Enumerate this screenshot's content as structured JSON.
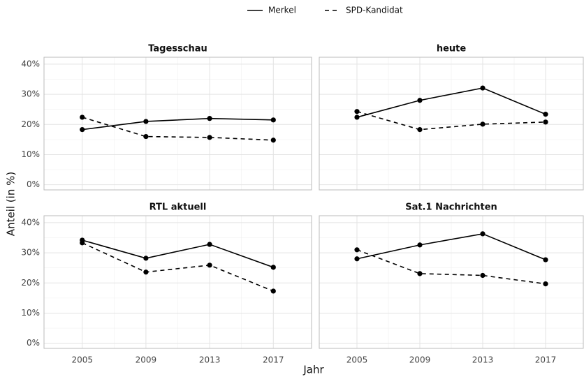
{
  "x_label": "Jahr",
  "y_label": "Anteil (in %)",
  "chart_data": [
    {
      "type": "line",
      "title": "Tagesschau",
      "x": [
        2005,
        2009,
        2013,
        2017
      ],
      "series": [
        {
          "name": "Merkel",
          "color": "#000000",
          "linestyle": "solid",
          "values": [
            18.3,
            21.0,
            22.0,
            21.5
          ]
        },
        {
          "name": "SPD-Kandidat",
          "color": "#000000",
          "linestyle": "dashed",
          "values": [
            22.4,
            16.0,
            15.7,
            14.8
          ]
        }
      ],
      "xlim": [
        2002.6,
        2019.4
      ],
      "xticks": [
        2005,
        2009,
        2013,
        2017
      ],
      "ylim": [
        -1.7,
        42.3
      ],
      "yticks": [
        {
          "value": 0,
          "label": "0%"
        },
        {
          "value": 10,
          "label": "10%"
        },
        {
          "value": 20,
          "label": "20%"
        },
        {
          "value": 30,
          "label": "30%"
        },
        {
          "value": 40,
          "label": "40%"
        }
      ],
      "grid": true
    },
    {
      "type": "line",
      "title": "heute",
      "x": [
        2005,
        2009,
        2013,
        2017
      ],
      "series": [
        {
          "name": "Merkel",
          "color": "#000000",
          "linestyle": "solid",
          "values": [
            22.4,
            28.0,
            32.1,
            23.4
          ]
        },
        {
          "name": "SPD-Kandidat",
          "color": "#000000",
          "linestyle": "dashed",
          "values": [
            24.3,
            18.3,
            20.1,
            20.8
          ]
        }
      ],
      "xlim": [
        2002.6,
        2019.4
      ],
      "xticks": [
        2005,
        2009,
        2013,
        2017
      ],
      "ylim": [
        -1.7,
        42.3
      ],
      "yticks": [
        {
          "value": 0,
          "label": "0%"
        },
        {
          "value": 10,
          "label": "10%"
        },
        {
          "value": 20,
          "label": "20%"
        },
        {
          "value": 30,
          "label": "30%"
        },
        {
          "value": 40,
          "label": "40%"
        }
      ],
      "grid": true
    },
    {
      "type": "line",
      "title": "RTL aktuell",
      "x": [
        2005,
        2009,
        2013,
        2017
      ],
      "series": [
        {
          "name": "Merkel",
          "color": "#000000",
          "linestyle": "solid",
          "values": [
            34.2,
            28.2,
            32.8,
            25.2
          ]
        },
        {
          "name": "SPD-Kandidat",
          "color": "#000000",
          "linestyle": "dashed",
          "values": [
            33.3,
            23.6,
            25.9,
            17.3
          ]
        }
      ],
      "xlim": [
        2002.6,
        2019.4
      ],
      "xticks": [
        2005,
        2009,
        2013,
        2017
      ],
      "ylim": [
        -1.7,
        42.3
      ],
      "yticks": [
        {
          "value": 0,
          "label": "0%"
        },
        {
          "value": 10,
          "label": "10%"
        },
        {
          "value": 20,
          "label": "20%"
        },
        {
          "value": 30,
          "label": "30%"
        },
        {
          "value": 40,
          "label": "40%"
        }
      ],
      "grid": true
    },
    {
      "type": "line",
      "title": "Sat.1 Nachrichten",
      "x": [
        2005,
        2009,
        2013,
        2017
      ],
      "series": [
        {
          "name": "Merkel",
          "color": "#000000",
          "linestyle": "solid",
          "values": [
            28.0,
            32.6,
            36.3,
            27.7
          ]
        },
        {
          "name": "SPD-Kandidat",
          "color": "#000000",
          "linestyle": "dashed",
          "values": [
            31.0,
            23.1,
            22.5,
            19.7
          ]
        }
      ],
      "xlim": [
        2002.6,
        2019.4
      ],
      "xticks": [
        2005,
        2009,
        2013,
        2017
      ],
      "ylim": [
        -1.7,
        42.3
      ],
      "yticks": [
        {
          "value": 0,
          "label": "0%"
        },
        {
          "value": 10,
          "label": "10%"
        },
        {
          "value": 20,
          "label": "20%"
        },
        {
          "value": 30,
          "label": "30%"
        },
        {
          "value": 40,
          "label": "40%"
        }
      ],
      "grid": true
    }
  ]
}
